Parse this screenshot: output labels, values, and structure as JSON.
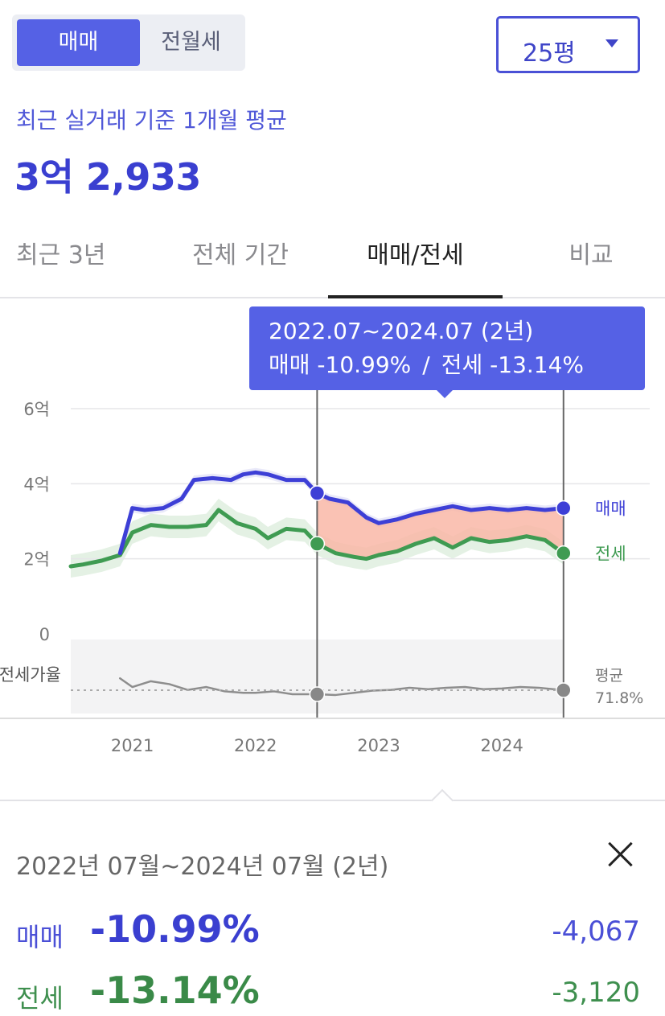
{
  "toggle": {
    "sale_label": "매매",
    "rent_label": "전월세"
  },
  "area_select": {
    "value": "25평"
  },
  "summary": {
    "subtitle": "최근 실거래 기준 1개월 평균",
    "price": "3억 2,933"
  },
  "tabs": [
    {
      "label": "최근 3년",
      "active": false
    },
    {
      "label": "전체 기간",
      "active": false
    },
    {
      "label": "매매/전세",
      "active": true
    },
    {
      "label": "비교",
      "active": false
    }
  ],
  "tooltip": {
    "range": "2022.07~2024.07 (2년)",
    "sale_text": "매매 -10.99%",
    "separator": "/",
    "rent_text": "전세 -13.14%"
  },
  "chart_data": {
    "type": "line",
    "ylim": [
      0,
      6
    ],
    "y_ticks": [
      {
        "value": 6,
        "label": "6억"
      },
      {
        "value": 4,
        "label": "4억"
      },
      {
        "value": 2,
        "label": "2억"
      },
      {
        "value": 0,
        "label": "0"
      }
    ],
    "x_ticks": [
      {
        "value": 2021,
        "label": "2021"
      },
      {
        "value": 2022,
        "label": "2022"
      },
      {
        "value": 2023,
        "label": "2023"
      },
      {
        "value": 2024,
        "label": "2024"
      }
    ],
    "xlim": [
      2020.5,
      2025.2
    ],
    "selection": {
      "start": 2022.5,
      "end": 2024.5
    },
    "series": [
      {
        "name": "매매",
        "color": "#3d3fd6",
        "x": [
          2020.9,
          2021.0,
          2021.1,
          2021.25,
          2021.4,
          2021.5,
          2021.65,
          2021.8,
          2021.9,
          2022.0,
          2022.1,
          2022.25,
          2022.4,
          2022.5,
          2022.6,
          2022.75,
          2022.9,
          2023.0,
          2023.15,
          2023.3,
          2023.45,
          2023.6,
          2023.75,
          2023.9,
          2024.05,
          2024.2,
          2024.35,
          2024.5
        ],
        "y": [
          2.15,
          3.35,
          3.3,
          3.35,
          3.6,
          4.1,
          4.15,
          4.1,
          4.25,
          4.3,
          4.25,
          4.1,
          4.1,
          3.75,
          3.6,
          3.5,
          3.1,
          2.95,
          3.05,
          3.2,
          3.3,
          3.4,
          3.3,
          3.35,
          3.3,
          3.35,
          3.3,
          3.35
        ]
      },
      {
        "name": "전세",
        "color": "#3f9b52",
        "x": [
          2020.5,
          2020.6,
          2020.75,
          2020.9,
          2021.0,
          2021.15,
          2021.3,
          2021.45,
          2021.6,
          2021.7,
          2021.85,
          2022.0,
          2022.1,
          2022.25,
          2022.4,
          2022.5,
          2022.65,
          2022.8,
          2022.9,
          2023.0,
          2023.15,
          2023.3,
          2023.45,
          2023.6,
          2023.75,
          2023.9,
          2024.05,
          2024.2,
          2024.35,
          2024.5
        ],
        "y": [
          1.8,
          1.85,
          1.95,
          2.1,
          2.7,
          2.9,
          2.85,
          2.85,
          2.9,
          3.3,
          2.95,
          2.8,
          2.55,
          2.8,
          2.75,
          2.4,
          2.15,
          2.05,
          2.0,
          2.1,
          2.2,
          2.4,
          2.55,
          2.3,
          2.55,
          2.45,
          2.5,
          2.6,
          2.5,
          2.15
        ]
      },
      {
        "name": "전세가율",
        "color": "#8d8d8d",
        "x": [
          2020.9,
          2021.0,
          2021.15,
          2021.3,
          2021.45,
          2021.6,
          2021.75,
          2021.9,
          2022.0,
          2022.15,
          2022.3,
          2022.5,
          2022.65,
          2022.8,
          2022.95,
          2023.1,
          2023.25,
          2023.4,
          2023.55,
          2023.7,
          2023.85,
          2024.0,
          2024.15,
          2024.3,
          2024.5
        ],
        "y": [
          0.8,
          0.74,
          0.78,
          0.76,
          0.72,
          0.74,
          0.71,
          0.7,
          0.7,
          0.71,
          0.69,
          0.69,
          0.685,
          0.7,
          0.715,
          0.72,
          0.735,
          0.725,
          0.735,
          0.74,
          0.725,
          0.73,
          0.74,
          0.735,
          0.718
        ]
      }
    ],
    "series_end_labels": {
      "sale": "매매",
      "rent": "전세"
    },
    "ratio_label": "전세가율",
    "ratio_avg_label": "평균",
    "ratio_avg_value": "71.8%"
  },
  "detail": {
    "period": "2022년 07월~2024년 07월 (2년)",
    "sale": {
      "label": "매매",
      "pct": "-10.99%",
      "amount": "-4,067"
    },
    "rent": {
      "label": "전세",
      "pct": "-13.14%",
      "amount": "-3,120"
    }
  }
}
